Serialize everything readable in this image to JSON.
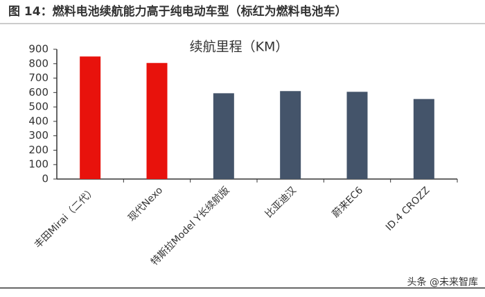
{
  "caption": "图 14：燃料电池续航能力高于纯电动车型（标红为燃料电池车）",
  "watermark": "头条 @未来智库",
  "chart_data": {
    "type": "bar",
    "title": "续航里程（KM）",
    "categories": [
      "丰田Mirai（二代）",
      "现代Nexo",
      "特斯拉Model Y长续航版",
      "比亚迪汉",
      "蔚来EC6",
      "ID.4 CROZZ"
    ],
    "values": [
      850,
      805,
      595,
      610,
      605,
      555
    ],
    "colors": [
      "#e8120c",
      "#e8120c",
      "#44546a",
      "#44546a",
      "#44546a",
      "#44546a"
    ],
    "ylim": [
      0,
      900
    ],
    "yticks": [
      0,
      100,
      200,
      300,
      400,
      500,
      600,
      700,
      800,
      900
    ],
    "grid": false
  }
}
